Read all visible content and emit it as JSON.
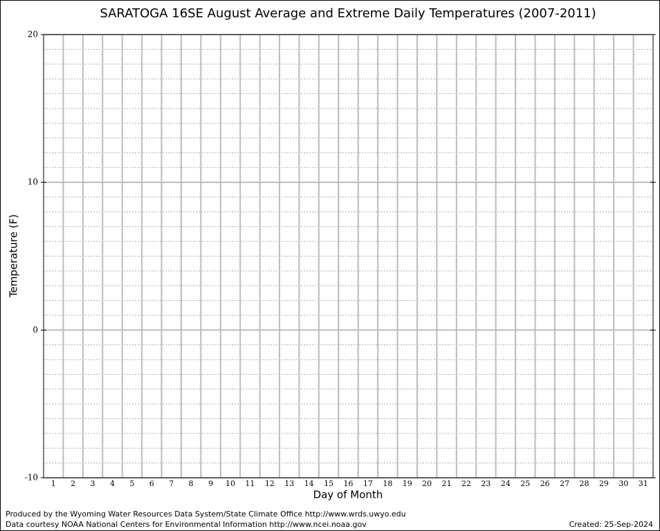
{
  "chart_data": {
    "type": "line",
    "title": "SARATOGA 16SE August Average and Extreme Daily Temperatures (2007-2011)",
    "xlabel": "Day of Month",
    "ylabel": "Temperature (F)",
    "categories": [
      "1",
      "2",
      "3",
      "4",
      "5",
      "6",
      "7",
      "8",
      "9",
      "10",
      "11",
      "12",
      "13",
      "14",
      "15",
      "16",
      "17",
      "18",
      "19",
      "20",
      "21",
      "22",
      "23",
      "24",
      "25",
      "26",
      "27",
      "28",
      "29",
      "30",
      "31"
    ],
    "series": [],
    "ylim": [
      -10,
      20
    ],
    "yticks": [
      -10,
      0,
      10,
      20
    ],
    "yminorticks": [
      -9,
      -8,
      -7,
      -6,
      -5,
      -4,
      -3,
      -2,
      -1,
      1,
      2,
      3,
      4,
      5,
      6,
      7,
      8,
      9,
      11,
      12,
      13,
      14,
      15,
      16,
      17,
      18,
      19
    ],
    "grid": true,
    "footer": [
      "Produced by the Wyoming Water Resources Data System/State Climate Office http://www.wrds.uwyo.edu",
      "Data courtesy NOAA National Centers for Environmental Information http://www.ncei.noaa.gov",
      "Created:  25-Sep-2024"
    ]
  }
}
